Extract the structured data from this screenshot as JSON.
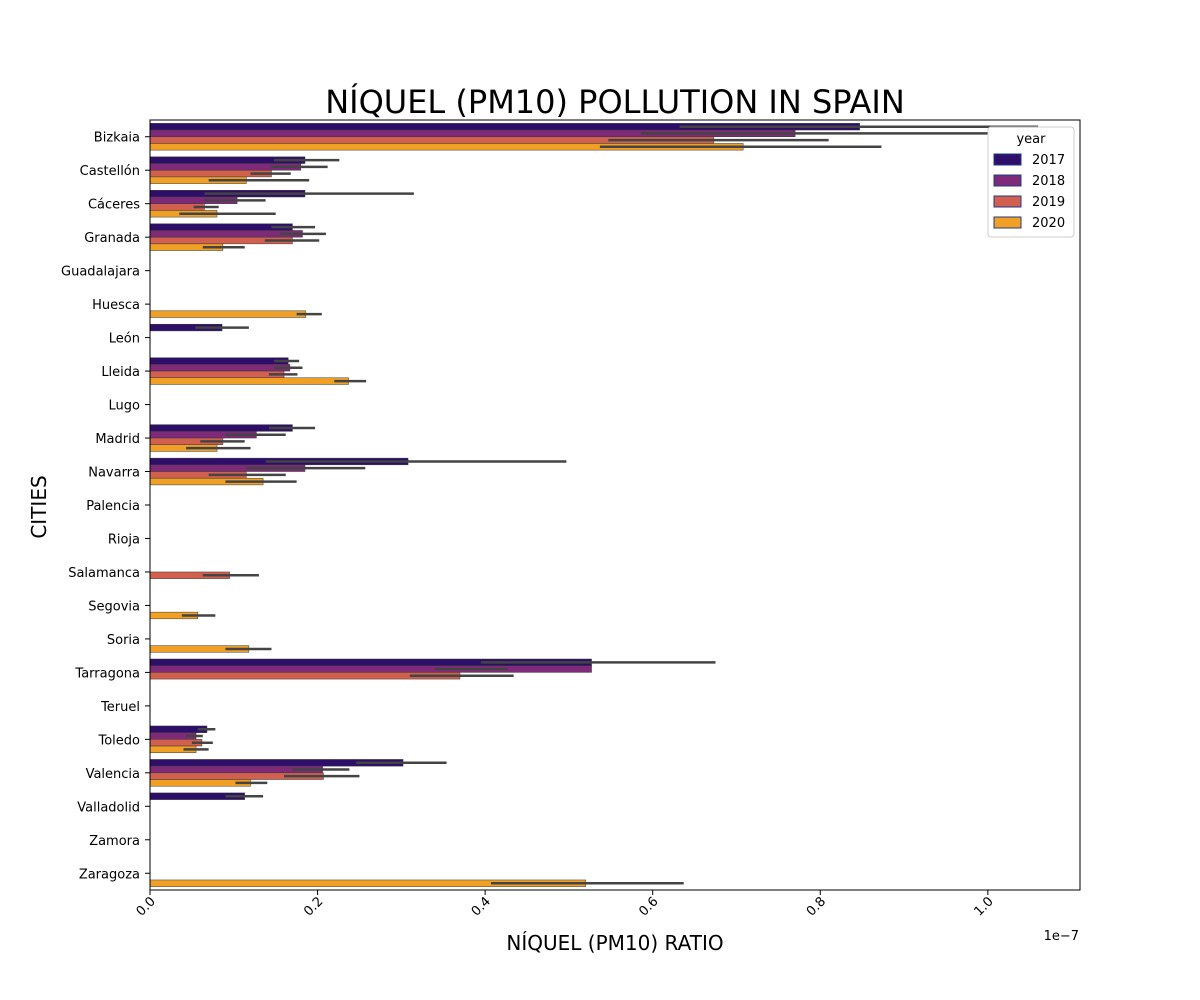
{
  "chart_data": {
    "type": "bar",
    "orientation": "horizontal",
    "title": "NÍQUEL (PM10) POLLUTION IN SPAIN",
    "xlabel": "NÍQUEL (PM10) RATIO",
    "ylabel": "CITIES",
    "x_scale_label": "1e−7",
    "xlim": [
      0,
      1.11
    ],
    "x_ticks": [
      "0.0",
      "0.2",
      "0.4",
      "0.6",
      "0.8",
      "1.0"
    ],
    "x_tick_values": [
      0,
      0.2,
      0.4,
      0.6,
      0.8,
      1.0
    ],
    "grid": false,
    "legend": {
      "title": "year",
      "position": "top-right",
      "entries": [
        "2017",
        "2018",
        "2019",
        "2020"
      ]
    },
    "series_colors": [
      "#2d0f6a",
      "#7e2a79",
      "#d1604e",
      "#f0a024"
    ],
    "categories": [
      "Bizkaia",
      "Castellón",
      "Cáceres",
      "Granada",
      "Guadalajara",
      "Huesca",
      "León",
      "Lleida",
      "Lugo",
      "Madrid",
      "Navarra",
      "Palencia",
      "Rioja",
      "Salamanca",
      "Segovia",
      "Soria",
      "Tarragona",
      "Teruel",
      "Toledo",
      "Valencia",
      "Valladolid",
      "Zamora",
      "Zaragoza"
    ],
    "series": [
      {
        "name": "2017",
        "values": [
          0.847,
          0.185,
          0.185,
          0.17,
          0,
          0,
          0.086,
          0.165,
          0,
          0.17,
          0.308,
          0,
          0,
          0,
          0,
          0,
          0.527,
          0,
          0.068,
          0.302,
          0.113,
          0,
          0
        ],
        "errors": [
          [
            0.632,
            1.06
          ],
          [
            0.148,
            0.226
          ],
          [
            0.065,
            0.315
          ],
          [
            0.145,
            0.197
          ],
          null,
          null,
          0.032,
          [
            0.148,
            0.178
          ],
          null,
          [
            0.142,
            0.197
          ],
          [
            0.138,
            0.497
          ],
          null,
          null,
          null,
          null,
          null,
          [
            0.395,
            0.675
          ],
          null,
          [
            0.057,
            0.078
          ],
          [
            0.246,
            0.354
          ],
          [
            0.09,
            0.135
          ],
          null,
          null
        ]
      },
      {
        "name": "2018",
        "values": [
          0.77,
          0.18,
          0.104,
          0.182,
          0,
          0,
          0,
          0.167,
          0,
          0.127,
          0.185,
          0,
          0,
          0,
          0,
          0,
          0.527,
          0,
          0.055,
          0.206,
          0,
          0,
          0
        ],
        "errors": [
          [
            0.586,
            1.0
          ],
          [
            0.145,
            0.212
          ],
          [
            0.065,
            0.138
          ],
          [
            0.155,
            0.21
          ],
          null,
          null,
          null,
          [
            0.148,
            0.182
          ],
          null,
          [
            0.09,
            0.162
          ],
          [
            0.115,
            0.257
          ],
          null,
          null,
          null,
          null,
          null,
          [
            0.34,
            0.427
          ],
          null,
          [
            0.043,
            0.063
          ],
          [
            0.17,
            0.238
          ],
          null,
          null,
          null
        ]
      },
      {
        "name": "2019",
        "values": [
          0.673,
          0.145,
          0.065,
          0.17,
          0,
          0,
          0,
          0.16,
          0,
          0.087,
          0.115,
          0,
          0,
          0.095,
          0,
          0,
          0.37,
          0,
          0.062,
          0.207,
          0,
          0,
          0
        ],
        "errors": [
          [
            0.547,
            0.81
          ],
          [
            0.12,
            0.168
          ],
          [
            0.052,
            0.082
          ],
          [
            0.137,
            0.202
          ],
          null,
          null,
          null,
          [
            0.142,
            0.176
          ],
          null,
          [
            0.06,
            0.113
          ],
          [
            0.07,
            0.162
          ],
          null,
          null,
          [
            0.063,
            0.13
          ],
          null,
          null,
          [
            0.31,
            0.434
          ],
          null,
          [
            0.05,
            0.075
          ],
          [
            0.16,
            0.25
          ],
          null,
          null,
          null
        ]
      },
      {
        "name": "2020",
        "values": [
          0.708,
          0.115,
          0.08,
          0.087,
          0,
          0.186,
          0,
          0.237,
          0,
          0.08,
          0.135,
          0,
          0,
          0,
          0.057,
          0.118,
          0,
          0,
          0.055,
          0.12,
          0,
          0,
          0.52
        ],
        "errors": [
          [
            0.537,
            0.873
          ],
          [
            0.07,
            0.19
          ],
          [
            0.035,
            0.15
          ],
          [
            0.063,
            0.113
          ],
          null,
          [
            0.175,
            0.205
          ],
          null,
          [
            0.22,
            0.258
          ],
          null,
          [
            0.043,
            0.12
          ],
          [
            0.09,
            0.175
          ],
          null,
          null,
          null,
          [
            0.038,
            0.078
          ],
          [
            0.09,
            0.145
          ],
          null,
          null,
          [
            0.04,
            0.07
          ],
          [
            0.102,
            0.14
          ],
          null,
          null,
          [
            0.407,
            0.637
          ]
        ]
      }
    ]
  }
}
